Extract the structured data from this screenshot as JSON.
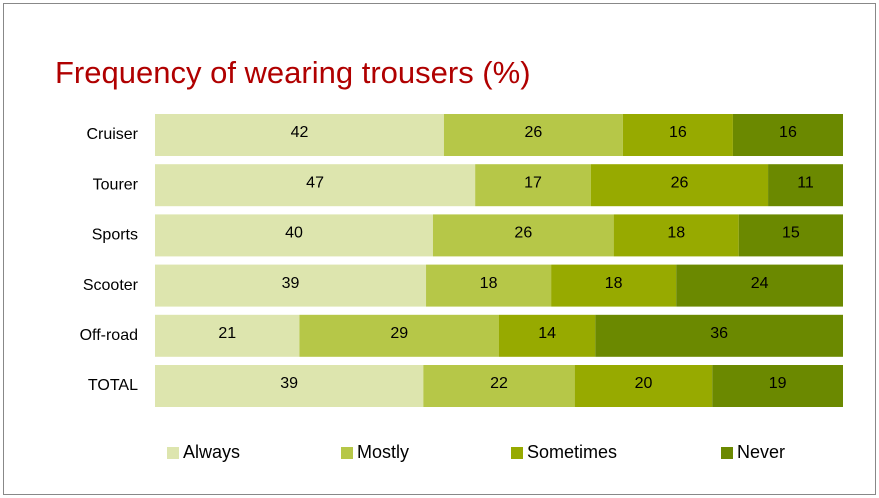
{
  "chart_data": {
    "type": "bar",
    "orientation": "horizontal",
    "stacking": "percent",
    "title": "Frequency of wearing trousers (%)",
    "categories": [
      "Cruiser",
      "Tourer",
      "Sports",
      "Scooter",
      "Off-road",
      "TOTAL"
    ],
    "series": [
      {
        "name": "Always",
        "color": "#dde5ae",
        "values": [
          42,
          47,
          40,
          39,
          21,
          39
        ]
      },
      {
        "name": "Mostly",
        "color": "#b6c748",
        "values": [
          26,
          17,
          26,
          18,
          29,
          22
        ]
      },
      {
        "name": "Sometimes",
        "color": "#97aa00",
        "values": [
          16,
          26,
          18,
          18,
          14,
          20
        ]
      },
      {
        "name": "Never",
        "color": "#6b8900",
        "values": [
          16,
          11,
          15,
          24,
          36,
          19
        ]
      }
    ],
    "legend": "bottom"
  }
}
